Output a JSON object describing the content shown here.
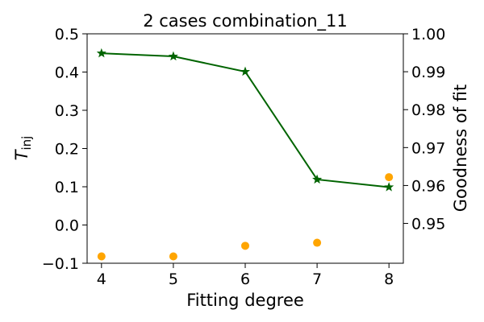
{
  "chart_data": {
    "type": "line",
    "title": "2 cases combination_11",
    "xlabel": "Fitting degree",
    "ylabel_main": "T",
    "ylabel_sub": "inj",
    "ylabel_right": "Goodness of fit",
    "x": [
      4,
      5,
      6,
      7,
      8
    ],
    "xlim": [
      3.8,
      8.2
    ],
    "xticks": [
      "4",
      "5",
      "6",
      "7",
      "8"
    ],
    "ylim_left": [
      -0.1,
      0.5
    ],
    "yticks_left": [
      "−0.1",
      "0.0",
      "0.1",
      "0.2",
      "0.3",
      "0.4",
      "0.5"
    ],
    "ylim_right": [
      0.9395,
      1.0
    ],
    "yticks_right": [
      "0.95",
      "0.96",
      "0.97",
      "0.98",
      "0.99",
      "1.00"
    ],
    "grid": false,
    "colors": {
      "line": "#006400",
      "scatter": "#ffa500"
    },
    "series": [
      {
        "axis": "left",
        "style": "line-star-markers",
        "values": [
          0.449,
          0.441,
          0.401,
          0.119,
          0.099
        ]
      },
      {
        "axis": "right",
        "style": "scatter-circles",
        "values": [
          0.9413,
          0.9413,
          0.9441,
          0.9449,
          0.9622
        ]
      }
    ]
  }
}
